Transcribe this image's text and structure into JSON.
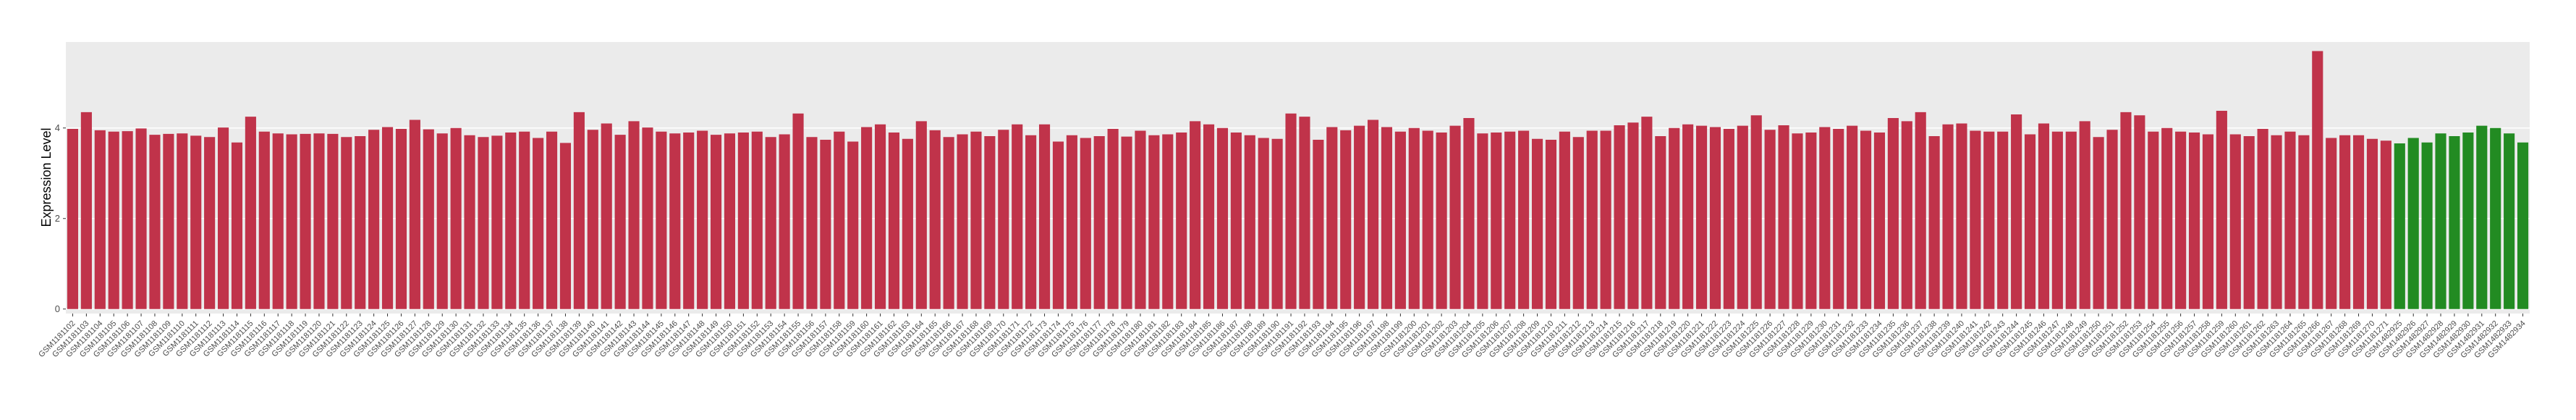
{
  "chart_data": {
    "type": "bar",
    "y_label": "Expression Level",
    "categories": [
      "GSM1181102",
      "GSM1181103",
      "GSM1181104",
      "GSM1181105",
      "GSM1181106",
      "GSM1181107",
      "GSM1181108",
      "GSM1181109",
      "GSM1181110",
      "GSM1181111",
      "GSM1181112",
      "GSM1181113",
      "GSM1181114",
      "GSM1181115",
      "GSM1181116",
      "GSM1181117",
      "GSM1181118",
      "GSM1181119",
      "GSM1181120",
      "GSM1181121",
      "GSM1181122",
      "GSM1181123",
      "GSM1181124",
      "GSM1181125",
      "GSM1181126",
      "GSM1181127",
      "GSM1181128",
      "GSM1181129",
      "GSM1181130",
      "GSM1181131",
      "GSM1181132",
      "GSM1181133",
      "GSM1181134",
      "GSM1181135",
      "GSM1181136",
      "GSM1181137",
      "GSM1181138",
      "GSM1181139",
      "GSM1181140",
      "GSM1181141",
      "GSM1181142",
      "GSM1181143",
      "GSM1181144",
      "GSM1181145",
      "GSM1181146",
      "GSM1181147",
      "GSM1181148",
      "GSM1181149",
      "GSM1181150",
      "GSM1181151",
      "GSM1181152",
      "GSM1181153",
      "GSM1181154",
      "GSM1181155",
      "GSM1181156",
      "GSM1181157",
      "GSM1181158",
      "GSM1181159",
      "GSM1181160",
      "GSM1181161",
      "GSM1181162",
      "GSM1181163",
      "GSM1181164",
      "GSM1181165",
      "GSM1181166",
      "GSM1181167",
      "GSM1181168",
      "GSM1181169",
      "GSM1181170",
      "GSM1181171",
      "GSM1181172",
      "GSM1181173",
      "GSM1181174",
      "GSM1181175",
      "GSM1181176",
      "GSM1181177",
      "GSM1181178",
      "GSM1181179",
      "GSM1181180",
      "GSM1181181",
      "GSM1181182",
      "GSM1181183",
      "GSM1181184",
      "GSM1181185",
      "GSM1181186",
      "GSM1181187",
      "GSM1181188",
      "GSM1181189",
      "GSM1181190",
      "GSM1181191",
      "GSM1181192",
      "GSM1181193",
      "GSM1181194",
      "GSM1181195",
      "GSM1181196",
      "GSM1181197",
      "GSM1181198",
      "GSM1181199",
      "GSM1181200",
      "GSM1181201",
      "GSM1181202",
      "GSM1181203",
      "GSM1181204",
      "GSM1181205",
      "GSM1181206",
      "GSM1181207",
      "GSM1181208",
      "GSM1181209",
      "GSM1181210",
      "GSM1181211",
      "GSM1181212",
      "GSM1181213",
      "GSM1181214",
      "GSM1181215",
      "GSM1181216",
      "GSM1181217",
      "GSM1181218",
      "GSM1181219",
      "GSM1181220",
      "GSM1181221",
      "GSM1181222",
      "GSM1181223",
      "GSM1181224",
      "GSM1181225",
      "GSM1181226",
      "GSM1181227",
      "GSM1181228",
      "GSM1181229",
      "GSM1181230",
      "GSM1181231",
      "GSM1181232",
      "GSM1181233",
      "GSM1181234",
      "GSM1181235",
      "GSM1181236",
      "GSM1181237",
      "GSM1181238",
      "GSM1181239",
      "GSM1181240",
      "GSM1181241",
      "GSM1181242",
      "GSM1181243",
      "GSM1181244",
      "GSM1181245",
      "GSM1181246",
      "GSM1181247",
      "GSM1181248",
      "GSM1181249",
      "GSM1181250",
      "GSM1181251",
      "GSM1181252",
      "GSM1181253",
      "GSM1181254",
      "GSM1181255",
      "GSM1181256",
      "GSM1181257",
      "GSM1181258",
      "GSM1181259",
      "GSM1181260",
      "GSM1181261",
      "GSM1181262",
      "GSM1181263",
      "GSM1181264",
      "GSM1181265",
      "GSM1181266",
      "GSM1181267",
      "GSM1181268",
      "GSM1181269",
      "GSM1181270",
      "GSM1181271",
      "GSM1482925",
      "GSM1482926",
      "GSM1482927",
      "GSM1482928",
      "GSM1482929",
      "GSM1482930",
      "GSM1482931",
      "GSM1482932",
      "GSM1482933",
      "GSM1482934"
    ],
    "series": [
      {
        "color": "#c0334a",
        "values": [
          3.98,
          4.35,
          3.95,
          3.92,
          3.93,
          3.99,
          3.85,
          3.87,
          3.88,
          3.83,
          3.8,
          4.01,
          3.68,
          4.25,
          3.92,
          3.88,
          3.86,
          3.87,
          3.88,
          3.87,
          3.8,
          3.82,
          3.96,
          4.02,
          3.98,
          4.18,
          3.97,
          3.88,
          4.0,
          3.84,
          3.8,
          3.83,
          3.9,
          3.92,
          3.78,
          3.92,
          3.67,
          4.35,
          3.96,
          4.1,
          3.85,
          4.15,
          4.01,
          3.92,
          3.88,
          3.9,
          3.94,
          3.85,
          3.88,
          3.9,
          3.92,
          3.8,
          3.86,
          4.32,
          3.8,
          3.74,
          3.92,
          3.7,
          4.02,
          4.08,
          3.9,
          3.76,
          4.15,
          3.95,
          3.8,
          3.86,
          3.92,
          3.82,
          3.96,
          4.08,
          3.84,
          4.08,
          3.7,
          3.84,
          3.78,
          3.82,
          3.98,
          3.81,
          3.94,
          3.84,
          3.86,
          3.9,
          4.15,
          4.08,
          4.0,
          3.9,
          3.84,
          3.78,
          3.76,
          4.32,
          4.25,
          3.74,
          4.02,
          3.95,
          4.05,
          4.18,
          4.02,
          3.92,
          4.0,
          3.94,
          3.9,
          4.05,
          4.22,
          3.88,
          3.9,
          3.92,
          3.94,
          3.76,
          3.74,
          3.92,
          3.8,
          3.94,
          3.94,
          4.06,
          4.12,
          4.25,
          3.82,
          4.0,
          4.08,
          4.05,
          4.02,
          3.98,
          4.05,
          4.28,
          3.96,
          4.06,
          3.88,
          3.9,
          4.02,
          3.98,
          4.05,
          3.94,
          3.9,
          4.22,
          4.15,
          4.35,
          3.82,
          4.08,
          4.1,
          3.94,
          3.92,
          3.92,
          4.3,
          3.86,
          4.1,
          3.92,
          3.92,
          4.15,
          3.8,
          3.96,
          4.35,
          4.28,
          3.92,
          4.0,
          3.92,
          3.9,
          3.86,
          4.38,
          3.86,
          3.82,
          3.98,
          3.84,
          3.92,
          3.84,
          5.7,
          3.78,
          3.84,
          3.84,
          3.76,
          3.72,
          null,
          null,
          null,
          null,
          null,
          null,
          null,
          null,
          null,
          null
        ]
      },
      {
        "color": "#228b22",
        "values": [
          null,
          null,
          null,
          null,
          null,
          null,
          null,
          null,
          null,
          null,
          null,
          null,
          null,
          null,
          null,
          null,
          null,
          null,
          null,
          null,
          null,
          null,
          null,
          null,
          null,
          null,
          null,
          null,
          null,
          null,
          null,
          null,
          null,
          null,
          null,
          null,
          null,
          null,
          null,
          null,
          null,
          null,
          null,
          null,
          null,
          null,
          null,
          null,
          null,
          null,
          null,
          null,
          null,
          null,
          null,
          null,
          null,
          null,
          null,
          null,
          null,
          null,
          null,
          null,
          null,
          null,
          null,
          null,
          null,
          null,
          null,
          null,
          null,
          null,
          null,
          null,
          null,
          null,
          null,
          null,
          null,
          null,
          null,
          null,
          null,
          null,
          null,
          null,
          null,
          null,
          null,
          null,
          null,
          null,
          null,
          null,
          null,
          null,
          null,
          null,
          null,
          null,
          null,
          null,
          null,
          null,
          null,
          null,
          null,
          null,
          null,
          null,
          null,
          null,
          null,
          null,
          null,
          null,
          null,
          null,
          null,
          null,
          null,
          null,
          null,
          null,
          null,
          null,
          null,
          null,
          null,
          null,
          null,
          null,
          null,
          null,
          null,
          null,
          null,
          null,
          null,
          null,
          null,
          null,
          null,
          null,
          null,
          null,
          null,
          null,
          null,
          null,
          null,
          null,
          null,
          null,
          null,
          null,
          null,
          null,
          null,
          null,
          null,
          null,
          null,
          null,
          null,
          null,
          null,
          null,
          3.66,
          3.78,
          3.68,
          3.88,
          3.82,
          3.9,
          4.05,
          4.0,
          3.88,
          3.68
        ]
      }
    ],
    "ylim": [
      -0.1,
      5.9
    ],
    "yticks": [
      0,
      2,
      4
    ],
    "grid": true
  }
}
